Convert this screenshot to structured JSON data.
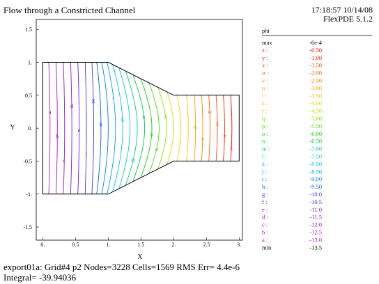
{
  "header": {
    "title": "Flow through a Constricted Channel",
    "time": "17:18:57 10/14/08",
    "version": "FlexPDE 5.1.2"
  },
  "footer": {
    "line1": "export01a:  Grid#4  p2  Nodes=3228 Cells=1569 RMS Err= 4.4e-6",
    "line2": "Integral= -39.94036"
  },
  "chart_data": {
    "type": "contour",
    "xlabel": "X",
    "ylabel": "Y",
    "xlim": [
      -0.1,
      3.05
    ],
    "ylim": [
      -1.7,
      1.65
    ],
    "xticks": [
      "0.",
      "0.5",
      "1.",
      "1.5",
      "2.",
      "2.5",
      "3."
    ],
    "yticks": [
      "1.5",
      "1.",
      "0.5",
      "0.",
      "-0.5",
      "-1.",
      "-1.5"
    ],
    "domain": {
      "outline": [
        [
          0,
          -1
        ],
        [
          1,
          -1
        ],
        [
          2,
          -0.5
        ],
        [
          3,
          -0.5
        ],
        [
          3,
          0.5
        ],
        [
          2,
          0.5
        ],
        [
          1,
          1
        ],
        [
          0,
          1
        ]
      ]
    },
    "legend": {
      "title": "phi",
      "max_label": "max",
      "max_value": "-6e-4",
      "min_label": "min",
      "min_value": "-13.5",
      "levels": [
        {
          "key": "z :",
          "value": "-0.50",
          "color": "#ff0000"
        },
        {
          "key": "y :",
          "value": "-1.00",
          "color": "#ff1f00"
        },
        {
          "key": "x :",
          "value": "-1.50",
          "color": "#ff3e00"
        },
        {
          "key": "w :",
          "value": "-2.00",
          "color": "#ff5d00"
        },
        {
          "key": "v :",
          "value": "-2.50",
          "color": "#ff7c00"
        },
        {
          "key": "u :",
          "value": "-3.00",
          "color": "#ff9b00"
        },
        {
          "key": "t :",
          "value": "-3.50",
          "color": "#ffba00"
        },
        {
          "key": "s :",
          "value": "-4.00",
          "color": "#f2d400"
        },
        {
          "key": "r :",
          "value": "-4.50",
          "color": "#c8e400"
        },
        {
          "key": "q :",
          "value": "-5.00",
          "color": "#8ce600"
        },
        {
          "key": "p :",
          "value": "-5.50",
          "color": "#4fd900"
        },
        {
          "key": "o :",
          "value": "-6.00",
          "color": "#14cc10"
        },
        {
          "key": "n :",
          "value": "-6.50",
          "color": "#00c850"
        },
        {
          "key": "m :",
          "value": "-7.00",
          "color": "#00cc90"
        },
        {
          "key": "l :",
          "value": "-7.50",
          "color": "#00cdbf"
        },
        {
          "key": "k :",
          "value": "-8.00",
          "color": "#00c3e6"
        },
        {
          "key": "j :",
          "value": "-8.50",
          "color": "#00a0f0"
        },
        {
          "key": "i :",
          "value": "-9.00",
          "color": "#007df5"
        },
        {
          "key": "h :",
          "value": "-9.50",
          "color": "#005af5"
        },
        {
          "key": "g :",
          "value": "-10.0",
          "color": "#2c3cf0"
        },
        {
          "key": "f :",
          "value": "-10.5",
          "color": "#4e28e6"
        },
        {
          "key": "e :",
          "value": "-11.0",
          "color": "#6a1edc"
        },
        {
          "key": "d :",
          "value": "-11.5",
          "color": "#8414d2"
        },
        {
          "key": "c :",
          "value": "-12.0",
          "color": "#9a10c6"
        },
        {
          "key": "b :",
          "value": "-12.5",
          "color": "#ae10bc"
        },
        {
          "key": "a :",
          "value": "-13.0",
          "color": "#c010b4"
        }
      ]
    }
  }
}
